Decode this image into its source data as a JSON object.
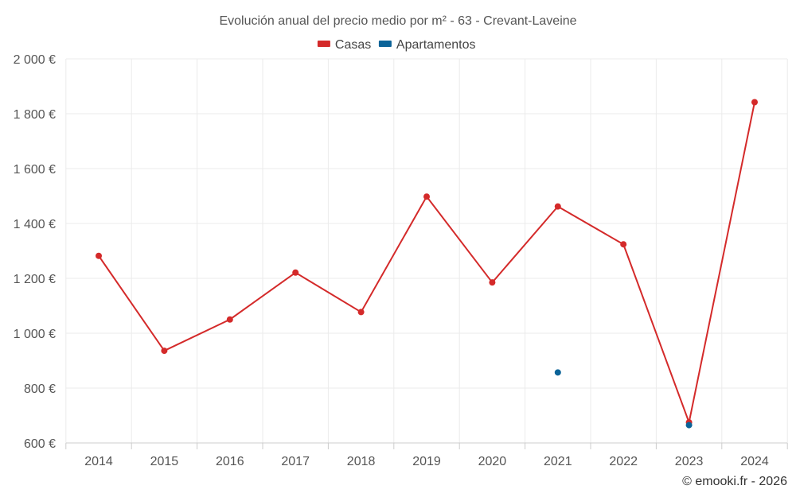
{
  "chart_data": {
    "type": "line",
    "title": "Evolución anual del precio medio por m² - 63 - Crevant-Laveine",
    "categories": [
      "2014",
      "2015",
      "2016",
      "2017",
      "2018",
      "2019",
      "2020",
      "2021",
      "2022",
      "2023",
      "2024"
    ],
    "ylim": [
      600,
      2000
    ],
    "yticks": [
      600,
      800,
      1000,
      1200,
      1400,
      1600,
      1800,
      2000
    ],
    "ytick_labels": [
      "600 €",
      "800 €",
      "1 000 €",
      "1 200 €",
      "1 400 €",
      "1 600 €",
      "1 800 €",
      "2 000 €"
    ],
    "xlabel": "",
    "ylabel": "",
    "grid": true,
    "legend_position": "top-center",
    "series": [
      {
        "name": "Casas",
        "color": "#d42a2a",
        "values": [
          1282,
          936,
          1050,
          1221,
          1077,
          1498,
          1185,
          1462,
          1324,
          675,
          1842
        ]
      },
      {
        "name": "Apartamentos",
        "color": "#0b6398",
        "values": [
          null,
          null,
          null,
          null,
          null,
          null,
          null,
          857,
          null,
          665,
          null
        ]
      }
    ]
  },
  "footer": {
    "copyright": "© emooki.fr - 2026"
  }
}
